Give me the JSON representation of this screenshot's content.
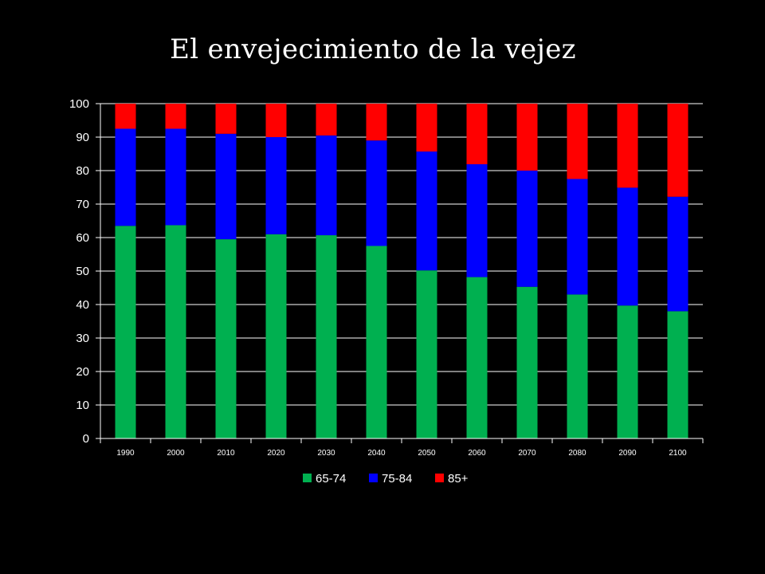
{
  "title": "El envejecimiento de la vejez",
  "colors": {
    "s65": "#00b050",
    "s75": "#0000ff",
    "s85": "#ff0000",
    "grid": "#ffffff",
    "background": "#000000"
  },
  "chart_data": {
    "type": "bar",
    "stacked": true,
    "title": "El envejecimiento de la vejez",
    "xlabel": "",
    "ylabel": "",
    "ylim": [
      0,
      100
    ],
    "yticks": [
      "0",
      "10",
      "20",
      "30",
      "40",
      "50",
      "60",
      "70",
      "80",
      "90",
      "100"
    ],
    "grid": true,
    "legend_position": "bottom",
    "categories": [
      "1990",
      "2000",
      "2010",
      "2020",
      "2030",
      "2040",
      "2050",
      "2060",
      "2070",
      "2080",
      "2090",
      "2100"
    ],
    "series": [
      {
        "name": "65-74",
        "color": "#00b050",
        "values": [
          63.5,
          63.7,
          59.5,
          61.0,
          60.7,
          57.5,
          50.2,
          48.2,
          45.3,
          43.0,
          39.7,
          38.0
        ]
      },
      {
        "name": "75-84",
        "color": "#0000ff",
        "values": [
          29.0,
          28.8,
          31.5,
          29.0,
          29.8,
          31.5,
          35.5,
          33.7,
          34.7,
          34.5,
          35.2,
          34.2
        ]
      },
      {
        "name": "85+",
        "color": "#ff0000",
        "values": [
          7.5,
          7.5,
          9.0,
          10.0,
          9.5,
          11.0,
          14.3,
          18.1,
          20.0,
          22.5,
          25.1,
          27.8
        ]
      }
    ]
  }
}
